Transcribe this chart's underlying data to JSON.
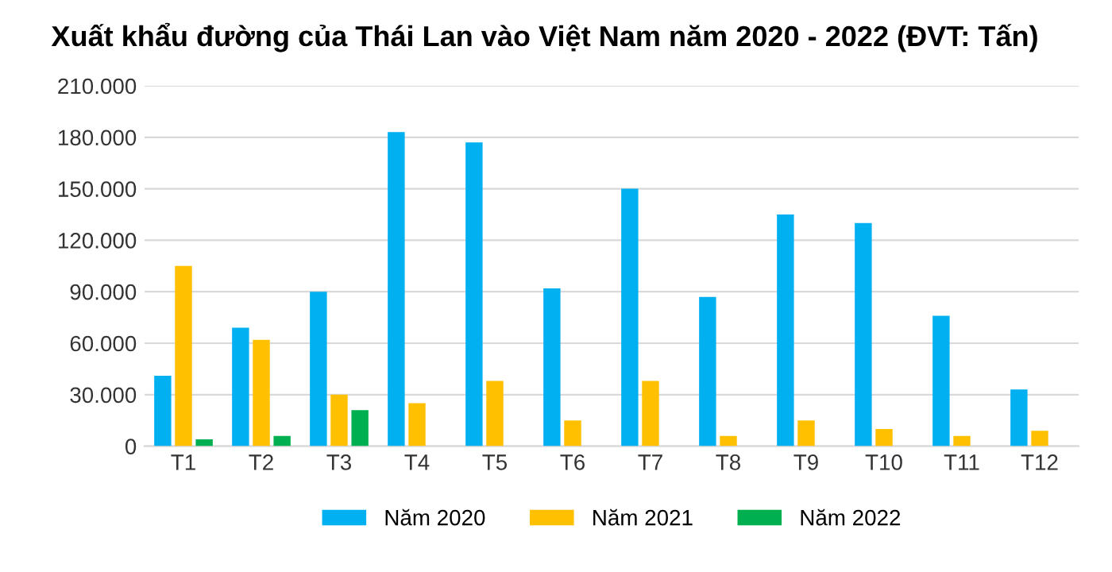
{
  "chart_data": {
    "type": "bar",
    "title": "Xuất khẩu đường của Thái Lan vào Việt Nam năm 2020 - 2022 (ĐVT: Tấn)",
    "categories": [
      "T1",
      "T2",
      "T3",
      "T4",
      "T5",
      "T6",
      "T7",
      "T8",
      "T9",
      "T10",
      "T11",
      "T12"
    ],
    "series": [
      {
        "name": "Năm 2020",
        "color": "#00b0f0",
        "values": [
          41000,
          69000,
          90000,
          183000,
          177000,
          92000,
          150000,
          87000,
          135000,
          130000,
          76000,
          33000
        ]
      },
      {
        "name": "Năm 2021",
        "color": "#ffc000",
        "values": [
          105000,
          62000,
          30000,
          25000,
          38000,
          15000,
          38000,
          6000,
          15000,
          10000,
          6000,
          9000
        ]
      },
      {
        "name": "Năm 2022",
        "color": "#00b050",
        "values": [
          4000,
          6000,
          21000,
          null,
          null,
          null,
          null,
          null,
          null,
          null,
          null,
          null
        ]
      }
    ],
    "ylim": [
      0,
      210000
    ],
    "yticks": [
      0,
      {
        "value": 30000,
        "label": "30.000"
      },
      {
        "value": 60000,
        "label": "60.000"
      },
      {
        "value": 90000,
        "label": "90.000"
      },
      {
        "value": 120000,
        "label": "120.000"
      },
      {
        "value": 150000,
        "label": "150.000"
      },
      {
        "value": 180000,
        "label": "180.000"
      },
      {
        "value": 210000,
        "label": "210.000"
      }
    ],
    "grid": "y",
    "legend": "bottom"
  }
}
